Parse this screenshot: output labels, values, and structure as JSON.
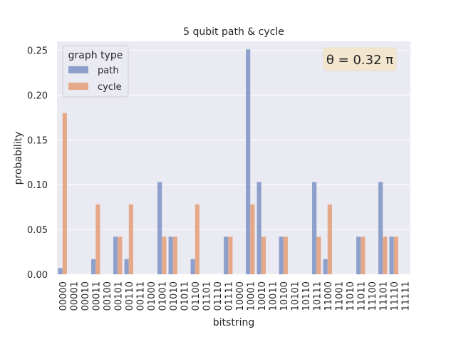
{
  "chart_data": {
    "type": "bar",
    "title": "5 qubit path & cycle",
    "xlabel": "bitstring",
    "ylabel": "probability",
    "ylim": [
      0,
      0.26
    ],
    "yticks": [
      "0.00",
      "0.05",
      "0.10",
      "0.15",
      "0.20",
      "0.25"
    ],
    "ytick_values": [
      0,
      0.05,
      0.1,
      0.15,
      0.2,
      0.25
    ],
    "grid": true,
    "legend": {
      "title": "graph type",
      "placement": "top-left"
    },
    "annotation": "θ = 0.32 π",
    "categories": [
      "00000",
      "00001",
      "00010",
      "00011",
      "00100",
      "00101",
      "00110",
      "00111",
      "01000",
      "01001",
      "01010",
      "01011",
      "01100",
      "01101",
      "01110",
      "01111",
      "10000",
      "10001",
      "10010",
      "10011",
      "10100",
      "10101",
      "10110",
      "10111",
      "11000",
      "11001",
      "11010",
      "11011",
      "11100",
      "11101",
      "11110",
      "11111"
    ],
    "series": [
      {
        "name": "path",
        "color": "#8da0cb",
        "values": [
          0.007,
          0,
          0,
          0.017,
          0,
          0.042,
          0.017,
          0,
          0,
          0.103,
          0.042,
          0,
          0.017,
          0,
          0,
          0.042,
          0,
          0.251,
          0.103,
          0,
          0.042,
          0,
          0,
          0.103,
          0.017,
          0,
          0,
          0.042,
          0,
          0.103,
          0.042,
          0
        ]
      },
      {
        "name": "cycle",
        "color": "#e5a98a",
        "values": [
          0.18,
          0,
          0,
          0.078,
          0,
          0.042,
          0.078,
          0,
          0,
          0.042,
          0.042,
          0,
          0.078,
          0,
          0,
          0.042,
          0,
          0.078,
          0.042,
          0,
          0.042,
          0,
          0,
          0.042,
          0.078,
          0,
          0,
          0.042,
          0,
          0.042,
          0.042,
          0
        ]
      }
    ]
  }
}
